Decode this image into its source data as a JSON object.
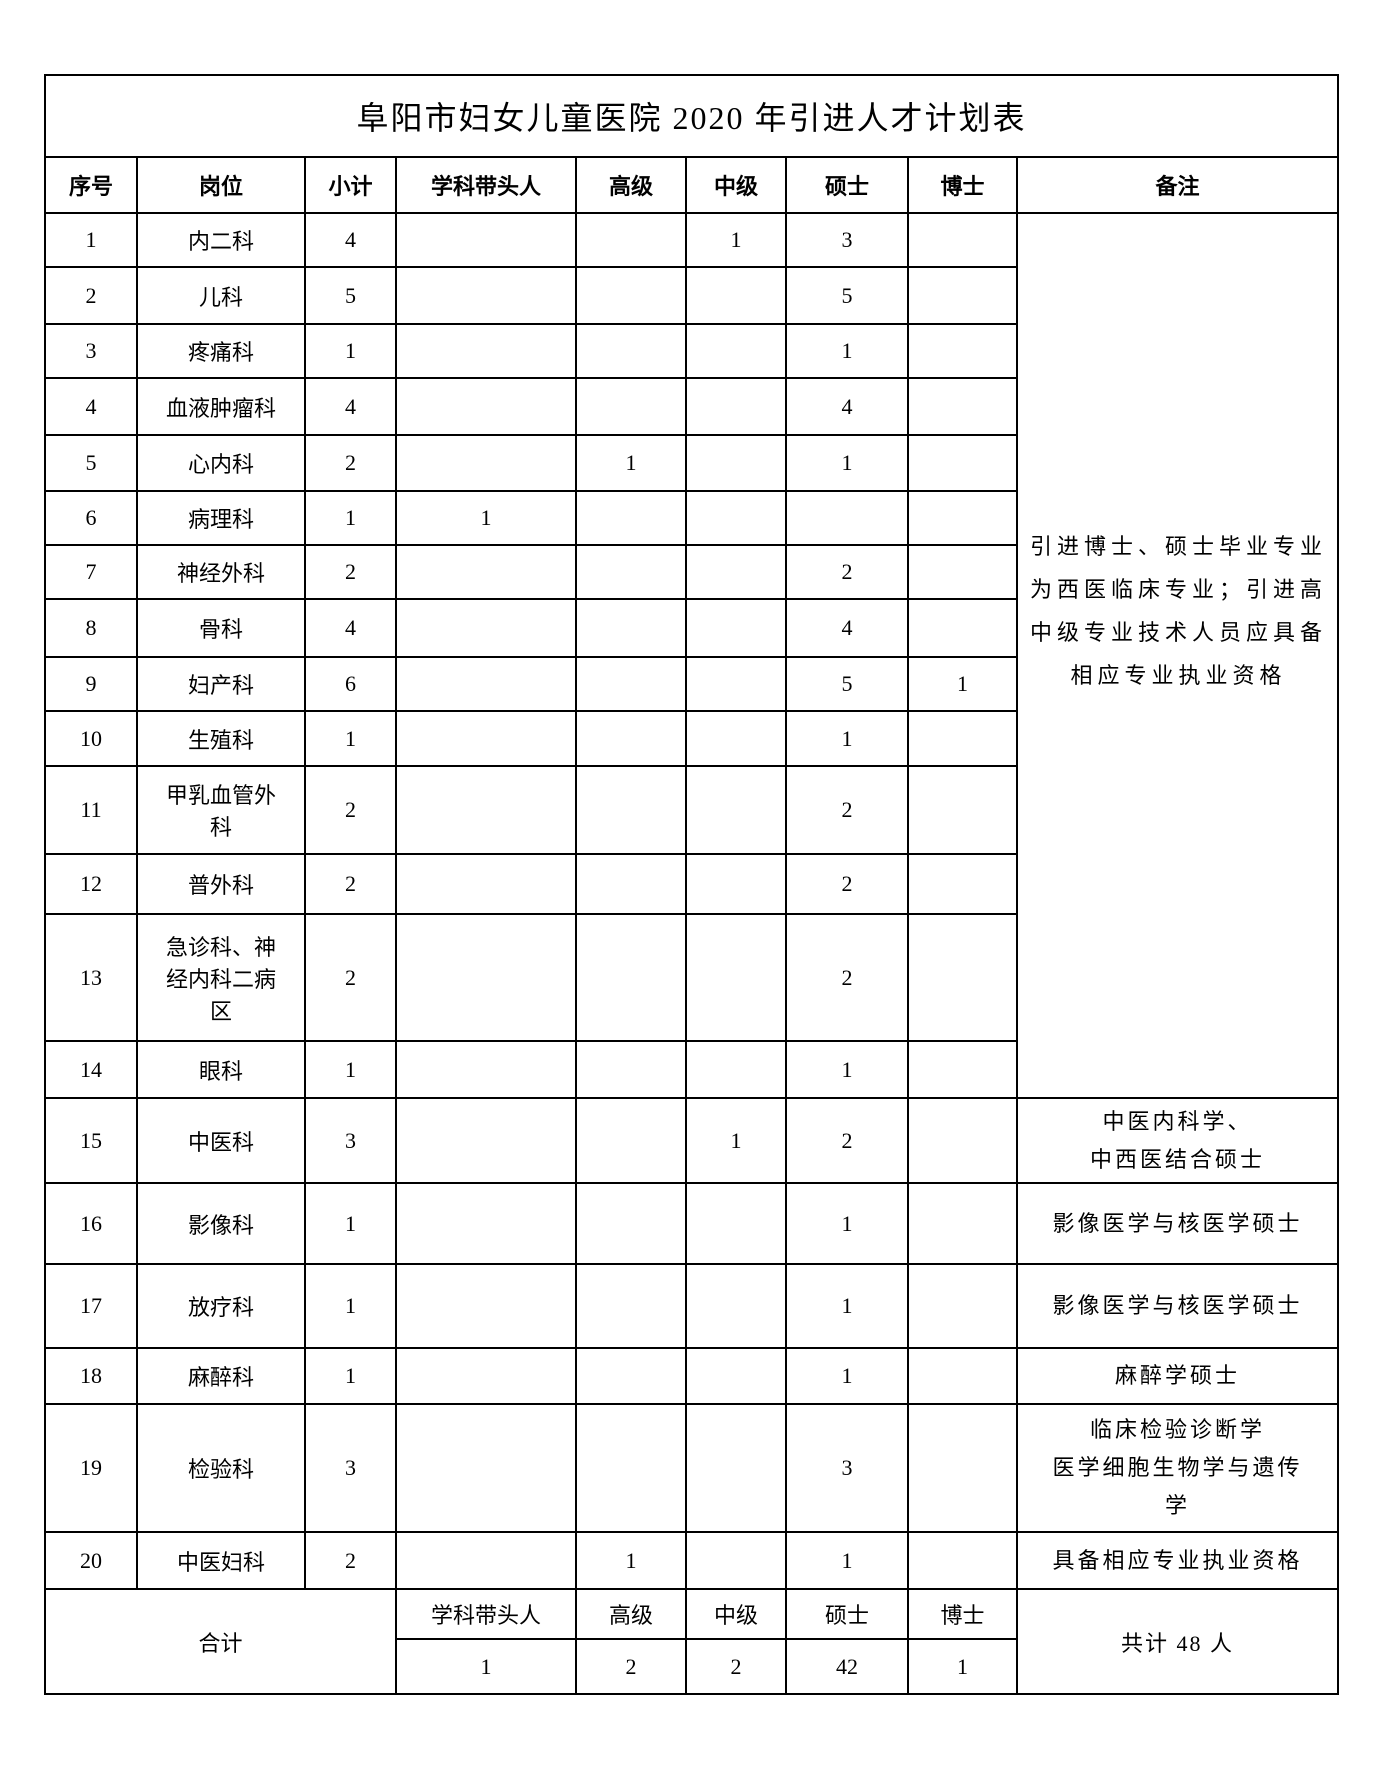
{
  "title": "阜阳市妇女儿童医院 2020 年引进人才计划表",
  "table": {
    "headers": [
      "序号",
      "岗位",
      "小计",
      "学科带头人",
      "高级",
      "中级",
      "硕士",
      "博士",
      "备注"
    ],
    "rows": [
      {
        "no": "1",
        "post": "内二科",
        "subtotal": "4",
        "leader": "",
        "senior": "",
        "mid": "1",
        "master": "3",
        "doctor": ""
      },
      {
        "no": "2",
        "post": "儿科",
        "subtotal": "5",
        "leader": "",
        "senior": "",
        "mid": "",
        "master": "5",
        "doctor": ""
      },
      {
        "no": "3",
        "post": "疼痛科",
        "subtotal": "1",
        "leader": "",
        "senior": "",
        "mid": "",
        "master": "1",
        "doctor": ""
      },
      {
        "no": "4",
        "post": "血液肿瘤科",
        "subtotal": "4",
        "leader": "",
        "senior": "",
        "mid": "",
        "master": "4",
        "doctor": ""
      },
      {
        "no": "5",
        "post": "心内科",
        "subtotal": "2",
        "leader": "",
        "senior": "1",
        "mid": "",
        "master": "1",
        "doctor": ""
      },
      {
        "no": "6",
        "post": "病理科",
        "subtotal": "1",
        "leader": "1",
        "senior": "",
        "mid": "",
        "master": "",
        "doctor": ""
      },
      {
        "no": "7",
        "post": "神经外科",
        "subtotal": "2",
        "leader": "",
        "senior": "",
        "mid": "",
        "master": "2",
        "doctor": ""
      },
      {
        "no": "8",
        "post": "骨科",
        "subtotal": "4",
        "leader": "",
        "senior": "",
        "mid": "",
        "master": "4",
        "doctor": ""
      },
      {
        "no": "9",
        "post": "妇产科",
        "subtotal": "6",
        "leader": "",
        "senior": "",
        "mid": "",
        "master": "5",
        "doctor": "1"
      },
      {
        "no": "10",
        "post": "生殖科",
        "subtotal": "1",
        "leader": "",
        "senior": "",
        "mid": "",
        "master": "1",
        "doctor": ""
      },
      {
        "no": "11",
        "post": "甲乳血管外\n科",
        "subtotal": "2",
        "leader": "",
        "senior": "",
        "mid": "",
        "master": "2",
        "doctor": ""
      },
      {
        "no": "12",
        "post": "普外科",
        "subtotal": "2",
        "leader": "",
        "senior": "",
        "mid": "",
        "master": "2",
        "doctor": ""
      },
      {
        "no": "13",
        "post": "急诊科、神\n经内科二病\n区",
        "subtotal": "2",
        "leader": "",
        "senior": "",
        "mid": "",
        "master": "2",
        "doctor": ""
      },
      {
        "no": "14",
        "post": "眼科",
        "subtotal": "1",
        "leader": "",
        "senior": "",
        "mid": "",
        "master": "1",
        "doctor": ""
      },
      {
        "no": "15",
        "post": "中医科",
        "subtotal": "3",
        "leader": "",
        "senior": "",
        "mid": "1",
        "master": "2",
        "doctor": ""
      },
      {
        "no": "16",
        "post": "影像科",
        "subtotal": "1",
        "leader": "",
        "senior": "",
        "mid": "",
        "master": "1",
        "doctor": ""
      },
      {
        "no": "17",
        "post": "放疗科",
        "subtotal": "1",
        "leader": "",
        "senior": "",
        "mid": "",
        "master": "1",
        "doctor": ""
      },
      {
        "no": "18",
        "post": "麻醉科",
        "subtotal": "1",
        "leader": "",
        "senior": "",
        "mid": "",
        "master": "1",
        "doctor": ""
      },
      {
        "no": "19",
        "post": "检验科",
        "subtotal": "3",
        "leader": "",
        "senior": "",
        "mid": "",
        "master": "3",
        "doctor": ""
      },
      {
        "no": "20",
        "post": "中医妇科",
        "subtotal": "2",
        "leader": "",
        "senior": "1",
        "mid": "",
        "master": "1",
        "doctor": ""
      }
    ],
    "remark_1_14": "引进博士、硕士毕业专业为西医临床专业；引进高中级专业技术人员应具备相应专业执业资格",
    "remarks": {
      "15": "中医内科学、\n中西医结合硕士",
      "16": "影像医学与核医学硕士",
      "17": "影像医学与核医学硕士",
      "18": "麻醉学硕士",
      "19": "临床检验诊断学\n医学细胞生物学与遗传\n学",
      "20": "具备相应专业执业资格"
    },
    "footer": {
      "total_label": "合计",
      "sub_headers": [
        "学科带头人",
        "高级",
        "中级",
        "硕士",
        "博士"
      ],
      "totals": [
        "1",
        "2",
        "2",
        "42",
        "1"
      ],
      "grand_total": "共计 48 人"
    }
  }
}
